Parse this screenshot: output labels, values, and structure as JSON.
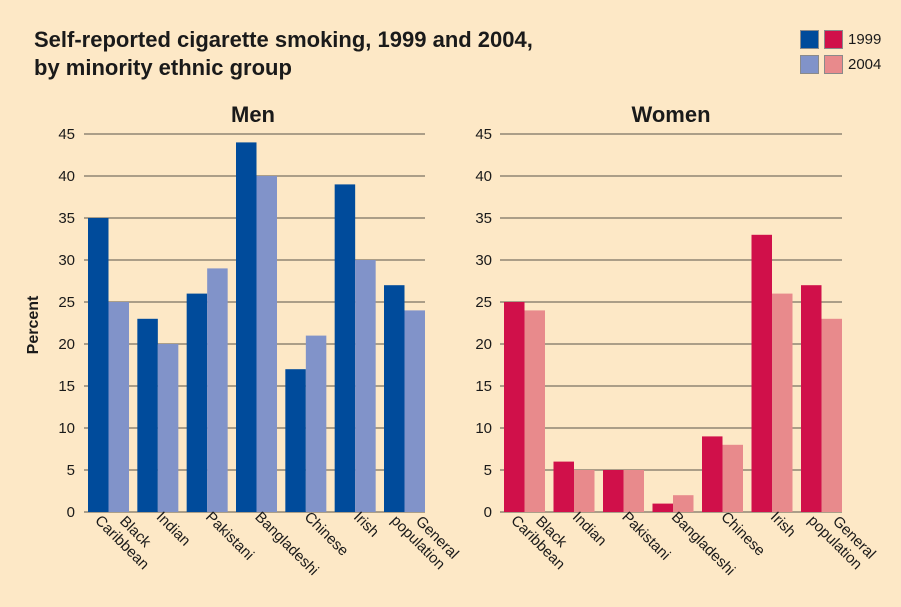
{
  "title_line1": "Self-reported cigarette smoking, 1999 and 2004,",
  "title_line2": "by minority ethnic group",
  "legend": [
    {
      "label": "1999",
      "men_color": "#004b9b",
      "women_color": "#d0104a"
    },
    {
      "label": "2004",
      "men_color": "#8193c9",
      "women_color": "#e88a8c"
    }
  ],
  "background_color": "#fde8c6",
  "chart_data": [
    {
      "type": "bar",
      "title": "Men",
      "ylabel": "Percent",
      "ylim": [
        0,
        45
      ],
      "yticks": [
        0,
        5,
        10,
        15,
        20,
        25,
        30,
        35,
        40,
        45
      ],
      "grid": true,
      "categories": [
        "Black Caribbean",
        "Indian",
        "Pakistani",
        "Bangladeshi",
        "Chinese",
        "Irish",
        "General population"
      ],
      "category_lines": [
        [
          "Black",
          "Caribbean"
        ],
        [
          "Indian"
        ],
        [
          "Pakistani"
        ],
        [
          "Bangladeshi"
        ],
        [
          "Chinese"
        ],
        [
          "Irish"
        ],
        [
          "General",
          "population"
        ]
      ],
      "series": [
        {
          "name": "1999",
          "color": "#004b9b",
          "values": [
            35,
            23,
            26,
            44,
            17,
            39,
            27
          ]
        },
        {
          "name": "2004",
          "color": "#8193c9",
          "values": [
            25,
            20,
            29,
            40,
            21,
            30,
            24
          ]
        }
      ]
    },
    {
      "type": "bar",
      "title": "Women",
      "ylim": [
        0,
        45
      ],
      "yticks": [
        0,
        5,
        10,
        15,
        20,
        25,
        30,
        35,
        40,
        45
      ],
      "grid": true,
      "categories": [
        "Black Caribbean",
        "Indian",
        "Pakistani",
        "Bangladeshi",
        "Chinese",
        "Irish",
        "General population"
      ],
      "category_lines": [
        [
          "Black",
          "Caribbean"
        ],
        [
          "Indian"
        ],
        [
          "Pakistani"
        ],
        [
          "Bangladeshi"
        ],
        [
          "Chinese"
        ],
        [
          "Irish"
        ],
        [
          "General",
          "population"
        ]
      ],
      "series": [
        {
          "name": "1999",
          "color": "#d0104a",
          "values": [
            25,
            6,
            5,
            1,
            9,
            33,
            27
          ]
        },
        {
          "name": "2004",
          "color": "#e88a8c",
          "values": [
            24,
            5,
            5,
            2,
            8,
            26,
            23
          ]
        }
      ]
    }
  ]
}
